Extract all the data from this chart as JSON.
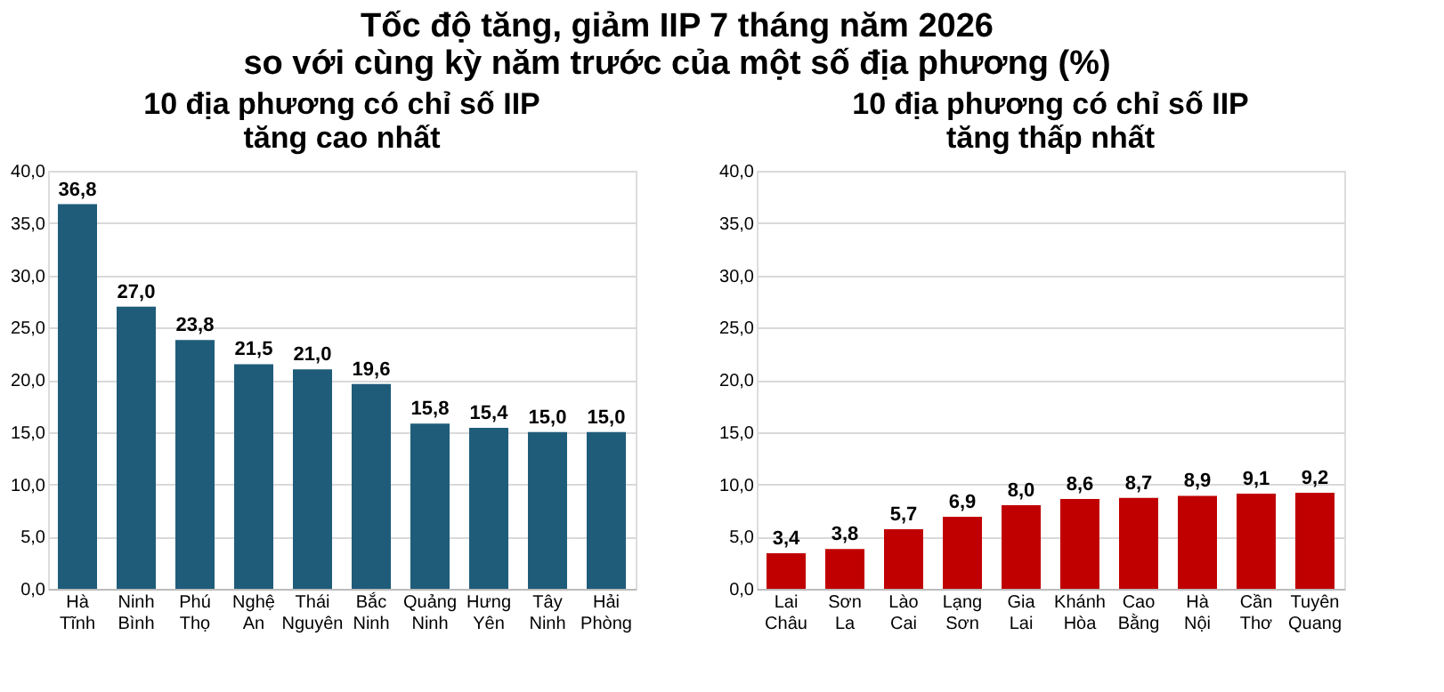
{
  "chart_data": [
    {
      "type": "other",
      "title": "Tốc độ tăng, giảm IIP 7 tháng năm 2026\nso với cùng kỳ năm trước của một số địa phương (%)"
    },
    {
      "type": "bar",
      "title": "10 địa phương có chỉ số IIP\ntăng cao nhất",
      "categories": [
        "Hà Tĩnh",
        "Ninh Bình",
        "Phú Thọ",
        "Nghệ An",
        "Thái Nguyên",
        "Bắc Ninh",
        "Quảng Ninh",
        "Hưng Yên",
        "Tây Ninh",
        "Hải Phòng"
      ],
      "values": [
        36.8,
        27.0,
        23.8,
        21.5,
        21.0,
        19.6,
        15.8,
        15.4,
        15.0,
        15.0
      ],
      "value_labels": [
        "36,8",
        "27,0",
        "23,8",
        "21,5",
        "21,0",
        "19,6",
        "15,8",
        "15,4",
        "15,0",
        "15,0"
      ],
      "color": "#1f5c7a",
      "ylim": [
        0,
        40
      ],
      "yticks": [
        {
          "value": 0,
          "label": "0,0"
        },
        {
          "value": 5,
          "label": "5,0"
        },
        {
          "value": 10,
          "label": "10,0"
        },
        {
          "value": 15,
          "label": "15,0"
        },
        {
          "value": 20,
          "label": "20,0"
        },
        {
          "value": 25,
          "label": "25,0"
        },
        {
          "value": 30,
          "label": "30,0"
        },
        {
          "value": 35,
          "label": "35,0"
        },
        {
          "value": 40,
          "label": "40,0"
        }
      ],
      "grid": "y"
    },
    {
      "type": "bar",
      "title": "10 địa phương có chỉ số IIP\ntăng thấp nhất",
      "categories": [
        "Lai Châu",
        "Sơn La",
        "Lào Cai",
        "Lạng Sơn",
        "Gia Lai",
        "Khánh Hòa",
        "Cao Bằng",
        "Hà Nội",
        "Cần Thơ",
        "Tuyên Quang"
      ],
      "values": [
        3.4,
        3.8,
        5.7,
        6.9,
        8.0,
        8.6,
        8.7,
        8.9,
        9.1,
        9.2
      ],
      "value_labels": [
        "3,4",
        "3,8",
        "5,7",
        "6,9",
        "8,0",
        "8,6",
        "8,7",
        "8,9",
        "9,1",
        "9,2"
      ],
      "color": "#c00000",
      "ylim": [
        0,
        40
      ],
      "yticks": [
        {
          "value": 0,
          "label": "0,0"
        },
        {
          "value": 5,
          "label": "5,0"
        },
        {
          "value": 10,
          "label": "10,0"
        },
        {
          "value": 15,
          "label": "15,0"
        },
        {
          "value": 20,
          "label": "20,0"
        },
        {
          "value": 25,
          "label": "25,0"
        },
        {
          "value": 30,
          "label": "30,0"
        },
        {
          "value": 35,
          "label": "35,0"
        },
        {
          "value": 40,
          "label": "40,0"
        }
      ],
      "grid": "y"
    }
  ]
}
